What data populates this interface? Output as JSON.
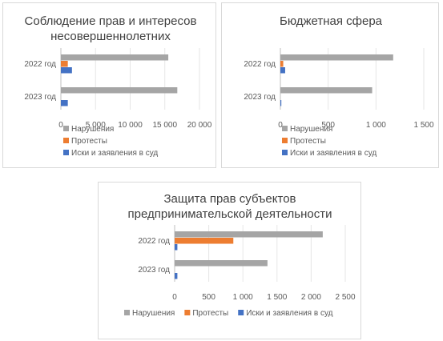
{
  "chart_data": [
    {
      "type": "bar",
      "orientation": "horizontal",
      "title_lines": [
        "Соблюдение прав и интересов",
        "несовершеннолетних"
      ],
      "categories": [
        "2022 год",
        "2023 год"
      ],
      "series": [
        {
          "name": "Нарушения",
          "color": "#a5a5a5",
          "values": [
            15500,
            16800
          ]
        },
        {
          "name": "Протесты",
          "color": "#ed7d31",
          "values": [
            1000,
            0
          ]
        },
        {
          "name": "Иски и заявления в суд",
          "color": "#4472c4",
          "values": [
            1600,
            1000
          ]
        }
      ],
      "xlim": [
        0,
        20000
      ],
      "xticks": [
        0,
        5000,
        10000,
        15000,
        20000
      ],
      "xtick_labels": [
        "0",
        "5 000",
        "10 000",
        "15 000",
        "20 000"
      ],
      "legend_position": "bottom",
      "legend_layout": "stacked"
    },
    {
      "type": "bar",
      "orientation": "horizontal",
      "title_lines": [
        "Бюджетная сфера"
      ],
      "categories": [
        "2022 год",
        "2023 год"
      ],
      "series": [
        {
          "name": "Нарушения",
          "color": "#a5a5a5",
          "values": [
            1180,
            960
          ]
        },
        {
          "name": "Протесты",
          "color": "#ed7d31",
          "values": [
            30,
            0
          ]
        },
        {
          "name": "Иски и заявления в суд",
          "color": "#4472c4",
          "values": [
            50,
            10
          ]
        }
      ],
      "xlim": [
        0,
        1500
      ],
      "xticks": [
        0,
        500,
        1000,
        1500
      ],
      "xtick_labels": [
        "0",
        "500",
        "1 000",
        "1 500"
      ],
      "legend_position": "bottom",
      "legend_layout": "stacked"
    },
    {
      "type": "bar",
      "orientation": "horizontal",
      "title_lines": [
        "Защита прав субъектов",
        "предпринимательской деятельности"
      ],
      "categories": [
        "2022 год",
        "2023 год"
      ],
      "series": [
        {
          "name": "Нарушения",
          "color": "#a5a5a5",
          "values": [
            2170,
            1360
          ]
        },
        {
          "name": "Протесты",
          "color": "#ed7d31",
          "values": [
            860,
            0
          ]
        },
        {
          "name": "Иски и заявления в суд",
          "color": "#4472c4",
          "values": [
            40,
            40
          ]
        }
      ],
      "xlim": [
        0,
        2500
      ],
      "xticks": [
        0,
        500,
        1000,
        1500,
        2000,
        2500
      ],
      "xtick_labels": [
        "0",
        "500",
        "1 000",
        "1 500",
        "2 000",
        "2 500"
      ],
      "legend_position": "bottom",
      "legend_layout": "inline"
    }
  ]
}
